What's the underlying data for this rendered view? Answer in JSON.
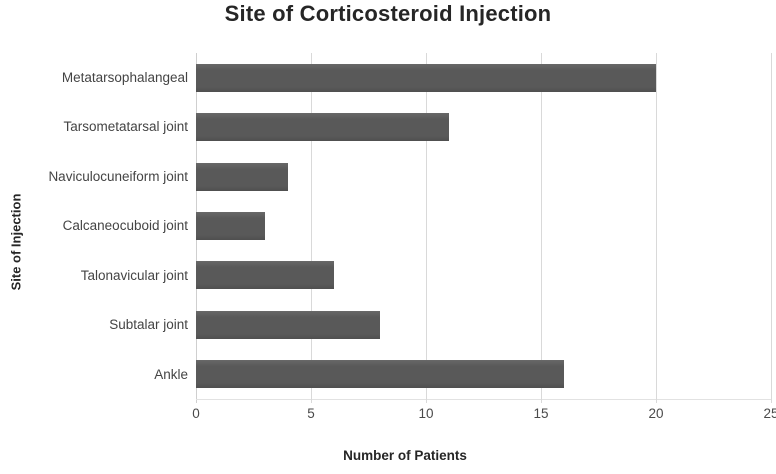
{
  "chart_data": {
    "type": "bar",
    "orientation": "horizontal",
    "title": "Site of Corticosteroid Injection",
    "xlabel": "Number of Patients",
    "ylabel": "Site of Injection",
    "categories": [
      "Metatarsophalangeal",
      "Tarsometatarsal joint",
      "Naviculocuneiform joint",
      "Calcaneocuboid joint",
      "Talonavicular joint",
      "Subtalar joint",
      "Ankle"
    ],
    "values": [
      20,
      11,
      4,
      3,
      6,
      8,
      16
    ],
    "xlim": [
      0,
      25
    ],
    "xticks": [
      0,
      5,
      10,
      15,
      20,
      25
    ],
    "grid": true,
    "legend": "none",
    "bar_color": "#595959",
    "gridline_color": "#d9d9d9",
    "axis_text_color": "#4a4a4a",
    "title_color": "#262626",
    "background_color": "#ffffff"
  }
}
